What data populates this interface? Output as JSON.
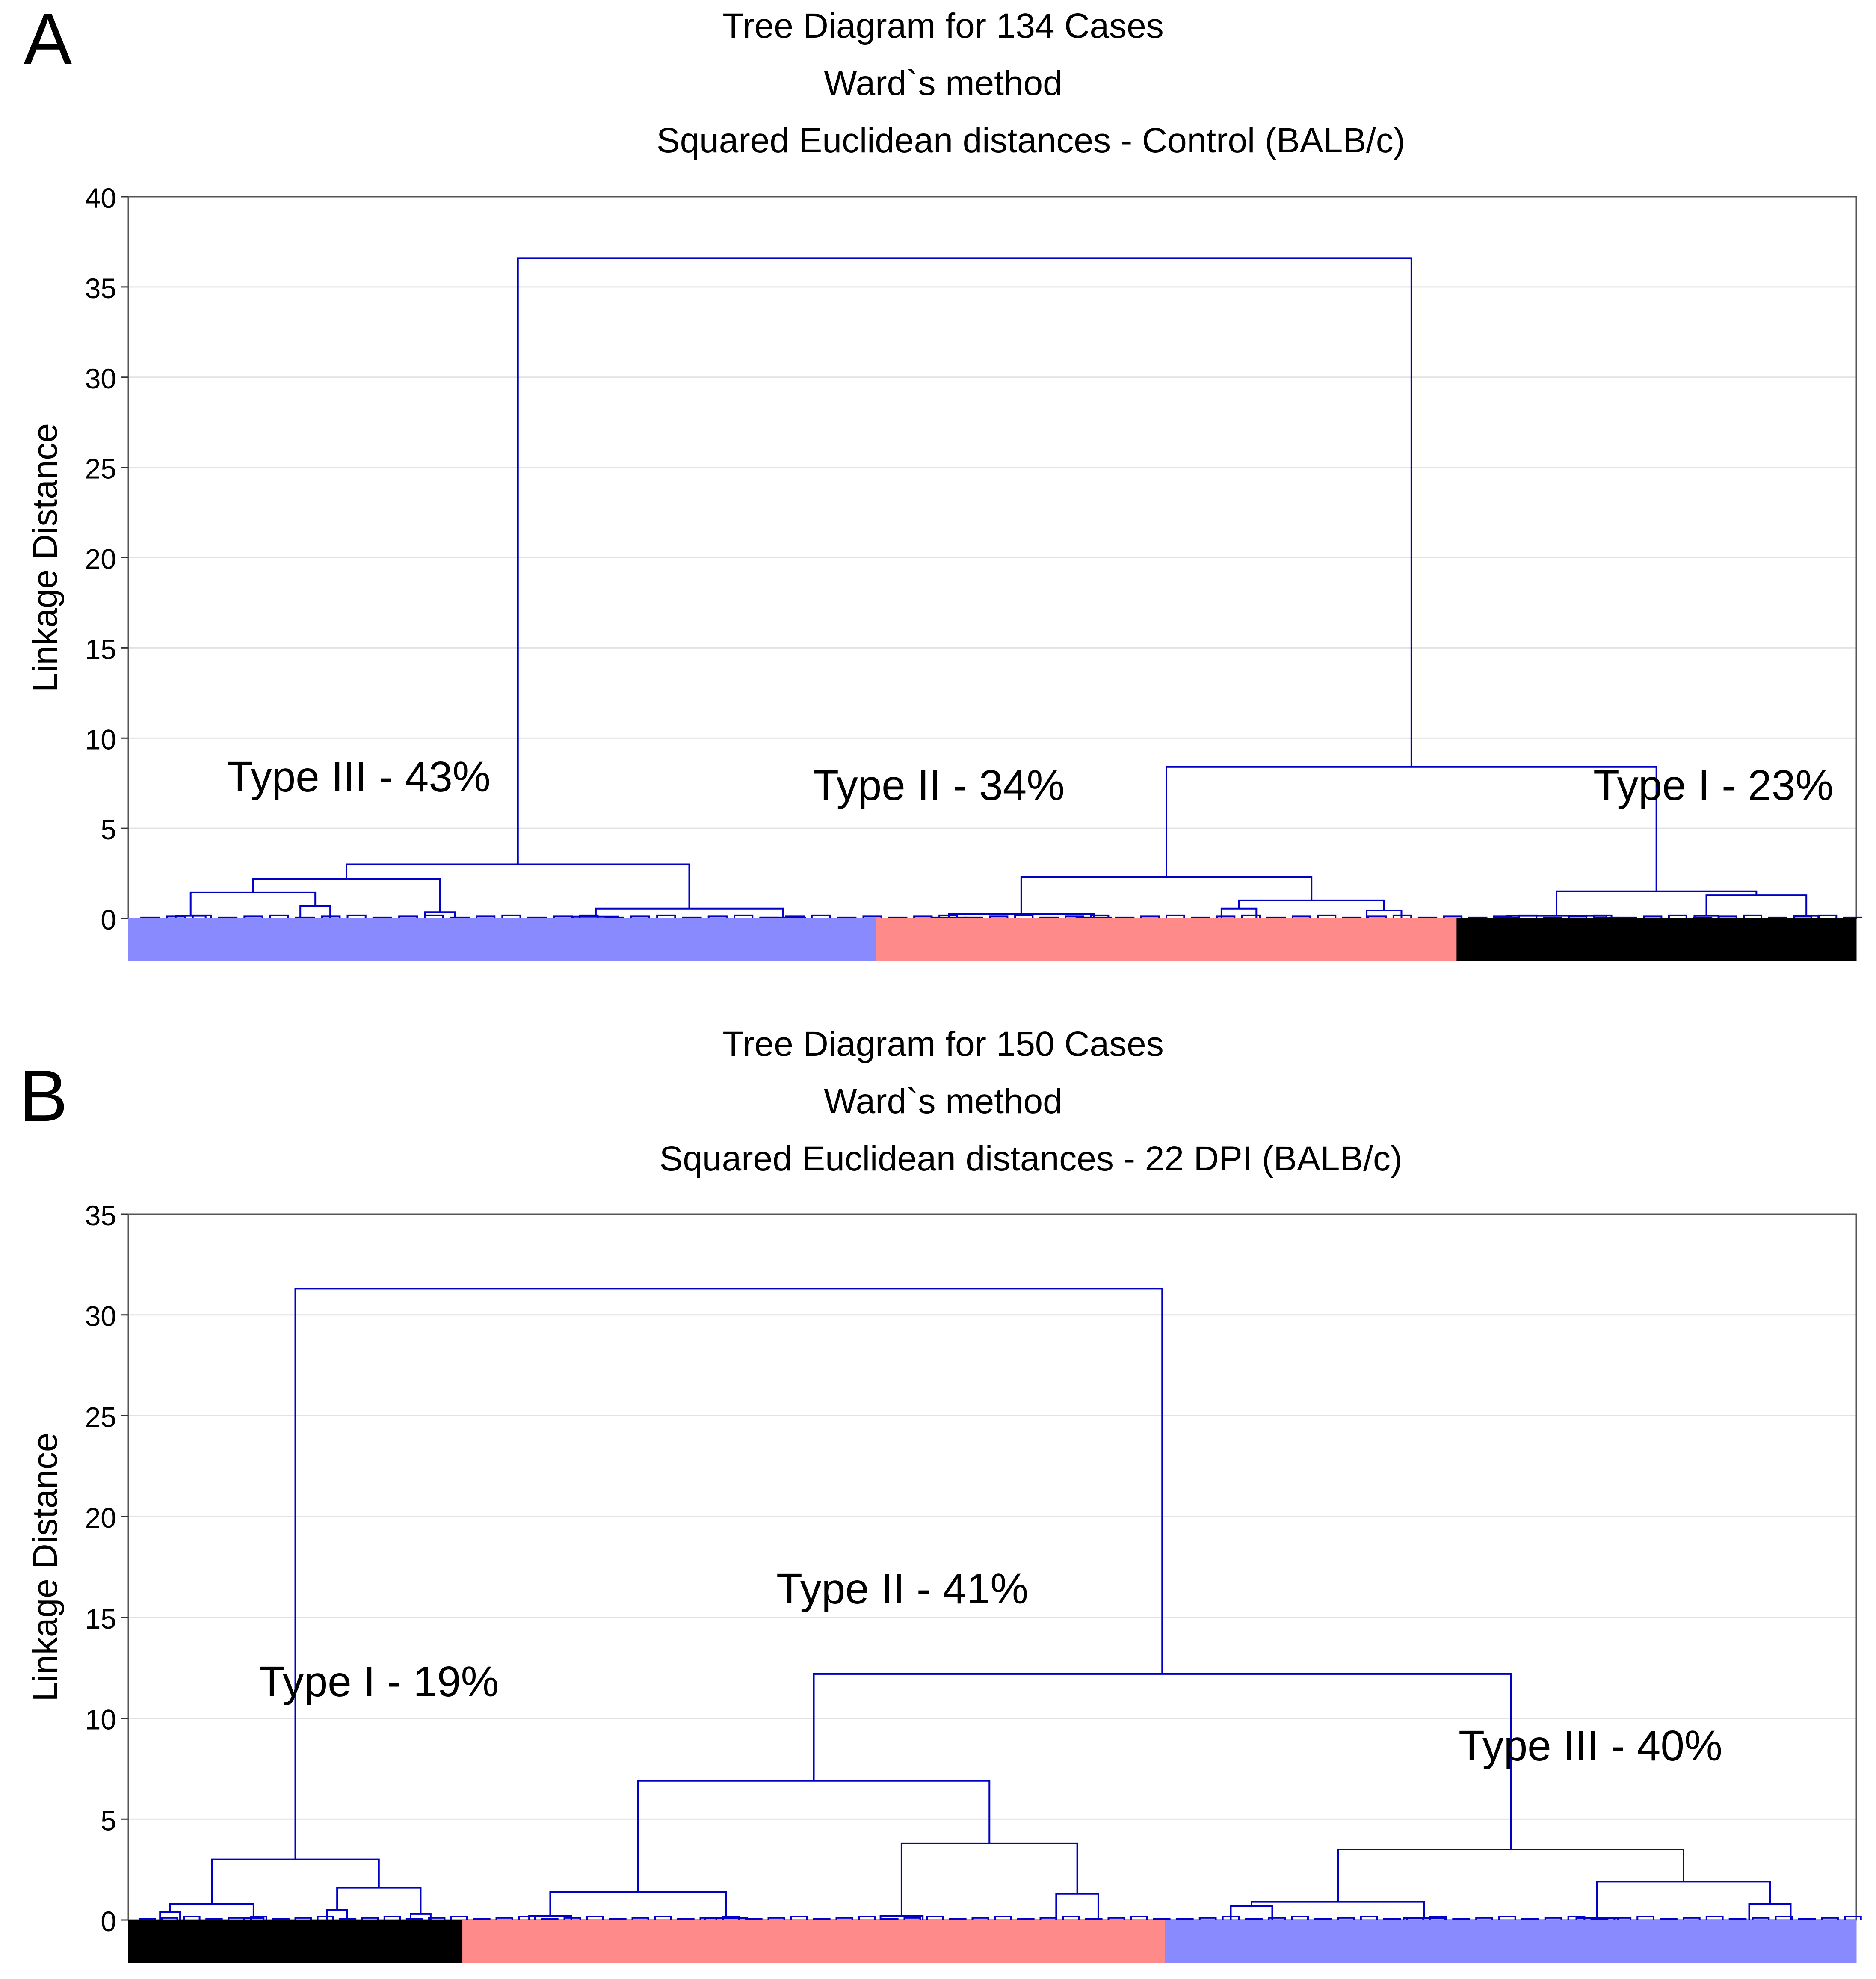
{
  "colors": {
    "dendrogram": "#0000c8",
    "type_i": "#000000",
    "type_ii": "#ff8a8a",
    "type_iii": "#8a8aff",
    "grid": "#e2e2e2",
    "frame": "#555555"
  },
  "chart_data": [
    {
      "type": "dendrogram",
      "panel_letter": "A",
      "title": [
        "Tree Diagram for 134 Cases",
        "Ward`s method",
        "Squared Euclidean distances - Control (BALB/c)"
      ],
      "xlabel": "",
      "ylabel": "Linkage Distance",
      "ylim": [
        0,
        40
      ],
      "yticks": [
        0,
        5,
        10,
        15,
        20,
        25,
        30,
        35,
        40
      ],
      "n_cases": 134,
      "root_height": 36.6,
      "clusters": [
        {
          "label": "Type III - 43%",
          "type": "III",
          "percent": 43,
          "n": 58,
          "merge_height": 3.0,
          "color": "#8a8aff",
          "subclusters": [
            {
              "height": 2.2,
              "children": [
                0.15,
                0.7,
                0.35
              ]
            },
            {
              "height": 0.55,
              "children": [
                0.1,
                0.05
              ]
            }
          ]
        },
        {
          "label": "Type II - 34%",
          "type": "II",
          "percent": 34,
          "n": 45,
          "merge_height": 2.3,
          "color": "#ff8a8a",
          "subclusters": [
            {
              "height": 0.25,
              "children": [
                0.05,
                0.05
              ]
            },
            {
              "height": 1.0,
              "children": [
                0.55,
                0.45
              ]
            }
          ]
        },
        {
          "label": "Type I - 23%",
          "type": "I",
          "percent": 23,
          "n": 31,
          "merge_height": 1.5,
          "color": "#000000",
          "subclusters": [
            {
              "height": 0.15,
              "children": [
                0.05,
                0.05
              ]
            },
            {
              "height": 1.3,
              "children": [
                0.15,
                0.15
              ]
            }
          ]
        }
      ],
      "joins": [
        {
          "left": "Type II",
          "right": "Type I",
          "height": 8.4
        }
      ],
      "color_bar_order": [
        "III",
        "II",
        "I"
      ]
    },
    {
      "type": "dendrogram",
      "panel_letter": "B",
      "title": [
        "Tree Diagram for 150 Cases",
        "Ward`s method",
        "Squared Euclidean distances - 22 DPI (BALB/c)"
      ],
      "xlabel": "",
      "ylabel": "Linkage Distance",
      "ylim": [
        0,
        35
      ],
      "yticks": [
        0,
        5,
        10,
        15,
        20,
        25,
        30,
        35
      ],
      "n_cases": 150,
      "root_height": 31.3,
      "clusters": [
        {
          "label": "Type I - 19%",
          "type": "I",
          "percent": 19,
          "n": 29,
          "merge_height": 3.0,
          "color": "#000000",
          "subclusters": [
            {
              "height": 0.8,
              "children": [
                0.4,
                0.1
              ]
            },
            {
              "height": 1.6,
              "children": [
                0.5,
                0.3
              ]
            }
          ]
        },
        {
          "label": "Type II - 41%",
          "type": "II",
          "percent": 41,
          "n": 61,
          "merge_height": 6.9,
          "color": "#ff8a8a",
          "subclusters": [
            {
              "height": 1.4,
              "children": [
                0.2,
                0.1
              ]
            },
            {
              "height": 3.8,
              "children": [
                0.2,
                1.3
              ]
            }
          ]
        },
        {
          "label": "Type III - 40%",
          "type": "III",
          "percent": 40,
          "n": 60,
          "merge_height": 3.5,
          "color": "#8a8aff",
          "subclusters": [
            {
              "height": 0.9,
              "children": [
                0.7,
                0.1
              ]
            },
            {
              "height": 1.9,
              "children": [
                0.1,
                0.8
              ]
            }
          ]
        }
      ],
      "joins": [
        {
          "left": "Type II",
          "right": "Type III",
          "height": 12.2
        }
      ],
      "color_bar_order": [
        "I",
        "II",
        "III"
      ]
    }
  ]
}
